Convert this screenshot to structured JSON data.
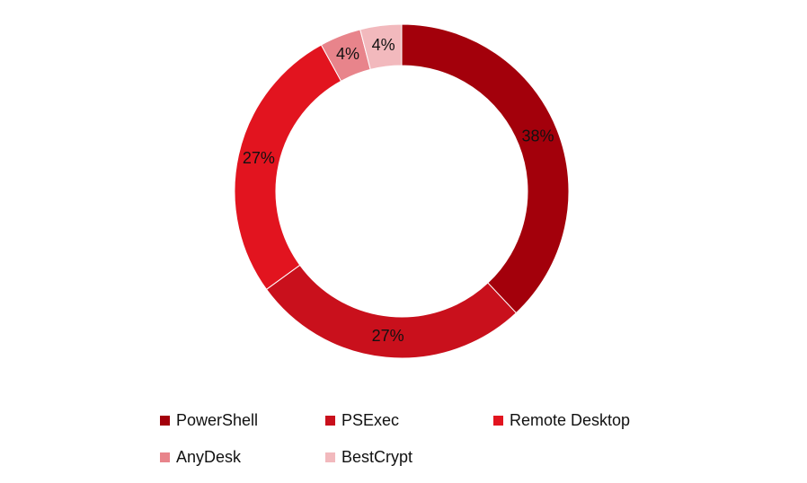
{
  "chart_data": {
    "type": "donut",
    "categories": [
      "PowerShell",
      "PSExec",
      "Remote Desktop",
      "AnyDesk",
      "BestCrypt"
    ],
    "values": [
      38,
      27,
      27,
      4,
      4
    ],
    "value_labels": [
      "38%",
      "27%",
      "27%",
      "4%",
      "4%"
    ],
    "colors": [
      "#a3000b",
      "#c9101c",
      "#e2141f",
      "#e8848b",
      "#f2b9bd"
    ],
    "legend": "bottom"
  }
}
